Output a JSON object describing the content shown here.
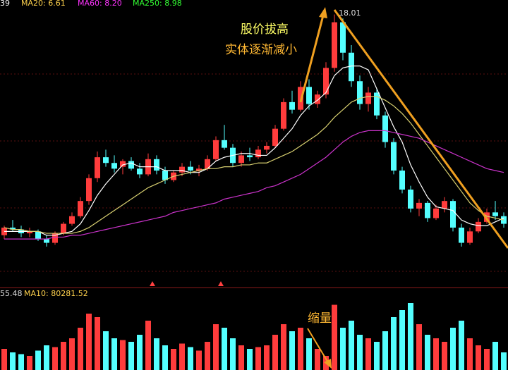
{
  "chart_data": [
    {
      "type": "candlestick",
      "legend": [
        {
          "text": "39",
          "color": "#ffffff"
        },
        {
          "text": "MA20: 6.61",
          "color": "#ffd24d"
        },
        {
          "text": "MA60: 8.20",
          "color": "#ff33ff"
        },
        {
          "text": "MA250: 8.98",
          "color": "#33ff33"
        }
      ],
      "annotations": [
        {
          "text": "股价拔高",
          "color": "#ffff66"
        },
        {
          "text": "实体逐渐减小",
          "color": "#ffb833"
        },
        {
          "text": "18.01",
          "color": "#dddddd"
        }
      ],
      "up_color": "#ff3c3c",
      "down_color": "#54ffff",
      "ylim": [
        4.5,
        18.4
      ],
      "open": [
        6.4,
        6.8,
        6.7,
        6.5,
        6.6,
        6.2,
        6.0,
        6.5,
        7.0,
        7.4,
        8.2,
        9.4,
        10.5,
        10.2,
        10.0,
        10.3,
        9.9,
        9.6,
        10.4,
        9.8,
        9.3,
        9.7,
        10.0,
        9.8,
        9.9,
        10.4,
        11.4,
        11.0,
        10.2,
        10.6,
        10.5,
        10.9,
        11.1,
        12.0,
        13.4,
        13.0,
        14.2,
        13.3,
        13.8,
        15.2,
        17.6,
        16.0,
        14.5,
        13.3,
        13.9,
        12.7,
        11.3,
        9.8,
        8.8,
        7.8,
        8.1,
        7.3,
        7.8,
        8.2,
        6.8,
        6.0,
        6.6,
        7.1,
        7.6,
        7.4
      ],
      "high": [
        6.9,
        7.2,
        6.9,
        6.8,
        6.7,
        6.4,
        6.6,
        7.1,
        7.6,
        8.4,
        9.6,
        10.8,
        10.9,
        10.6,
        10.4,
        10.5,
        10.2,
        10.7,
        10.6,
        10.0,
        9.8,
        10.2,
        10.3,
        10.1,
        10.6,
        11.6,
        12.2,
        11.2,
        10.8,
        11.0,
        11.1,
        11.3,
        12.2,
        13.6,
        14.0,
        14.5,
        14.6,
        14.0,
        15.5,
        18.01,
        17.8,
        16.4,
        14.8,
        14.2,
        14.1,
        12.9,
        11.5,
        10.0,
        9.0,
        8.3,
        8.2,
        8.0,
        8.4,
        8.3,
        7.0,
        6.8,
        7.3,
        7.8,
        8.2,
        7.6
      ],
      "low": [
        6.2,
        6.6,
        6.3,
        6.3,
        6.1,
        5.8,
        5.9,
        6.4,
        6.9,
        7.3,
        8.0,
        9.2,
        10.0,
        9.7,
        9.6,
        9.8,
        9.4,
        9.5,
        9.6,
        9.1,
        9.2,
        9.5,
        9.6,
        9.5,
        9.8,
        10.3,
        10.9,
        10.0,
        10.0,
        10.3,
        10.4,
        10.7,
        11.0,
        11.9,
        12.8,
        12.9,
        13.0,
        13.1,
        13.6,
        15.0,
        15.6,
        14.2,
        13.0,
        12.9,
        12.5,
        11.0,
        9.6,
        8.6,
        7.6,
        7.4,
        7.1,
        7.2,
        7.6,
        6.6,
        5.8,
        5.9,
        6.5,
        7.0,
        7.2,
        6.8
      ],
      "close": [
        6.8,
        6.7,
        6.5,
        6.6,
        6.2,
        6.0,
        6.5,
        7.0,
        7.4,
        8.2,
        9.4,
        10.5,
        10.2,
        9.9,
        10.3,
        9.9,
        9.6,
        10.4,
        9.8,
        9.3,
        9.7,
        10.0,
        9.8,
        9.9,
        10.4,
        11.4,
        11.0,
        10.2,
        10.6,
        10.5,
        10.9,
        11.1,
        12.0,
        13.4,
        13.0,
        14.2,
        13.3,
        13.8,
        15.2,
        17.6,
        16.0,
        14.5,
        13.3,
        13.9,
        12.7,
        11.3,
        9.8,
        8.8,
        7.8,
        8.1,
        7.3,
        7.8,
        8.2,
        6.8,
        6.0,
        6.6,
        7.1,
        7.6,
        7.4,
        7.0
      ],
      "lines": [
        {
          "color": "#ffffff",
          "values": [
            6.6,
            6.6,
            6.6,
            6.6,
            6.6,
            6.4,
            6.4,
            6.5,
            6.6,
            7.0,
            7.7,
            8.5,
            9.1,
            9.6,
            10.1,
            10.2,
            10.0,
            10.0,
            10.0,
            9.8,
            9.8,
            9.8,
            9.7,
            9.7,
            9.9,
            10.3,
            10.5,
            10.6,
            10.7,
            10.7,
            10.6,
            10.6,
            11.0,
            11.5,
            12.0,
            12.7,
            13.2,
            13.5,
            13.9,
            14.8,
            15.2,
            15.3,
            15.3,
            15.1,
            14.1,
            13.1,
            12.1,
            11.3,
            10.1,
            9.2,
            8.4,
            7.9,
            7.8,
            7.7,
            7.2,
            7.0,
            6.9,
            6.9,
            7.1,
            7.3
          ]
        },
        {
          "color": "#d8d070",
          "values": [
            6.8,
            6.7,
            6.7,
            6.6,
            6.6,
            6.5,
            6.5,
            6.5,
            6.5,
            6.6,
            6.8,
            7.1,
            7.4,
            7.7,
            8.0,
            8.3,
            8.6,
            8.9,
            9.1,
            9.3,
            9.5,
            9.6,
            9.7,
            9.8,
            9.9,
            9.9,
            10.0,
            10.0,
            10.1,
            10.1,
            10.2,
            10.2,
            10.4,
            10.6,
            10.8,
            11.1,
            11.4,
            11.7,
            12.1,
            12.6,
            13.0,
            13.4,
            13.6,
            13.7,
            13.7,
            13.5,
            13.2,
            12.8,
            12.3,
            11.7,
            11.1,
            10.5,
            9.9,
            9.3,
            8.7,
            8.1,
            7.7,
            7.4,
            7.3,
            7.2
          ]
        },
        {
          "color": "#cc33cc",
          "values": [
            6.2,
            6.2,
            6.2,
            6.2,
            6.2,
            6.2,
            6.3,
            6.3,
            6.4,
            6.4,
            6.5,
            6.6,
            6.7,
            6.8,
            6.9,
            7.0,
            7.1,
            7.2,
            7.3,
            7.4,
            7.6,
            7.7,
            7.8,
            7.9,
            8.0,
            8.1,
            8.3,
            8.4,
            8.5,
            8.6,
            8.7,
            8.9,
            9.0,
            9.2,
            9.4,
            9.6,
            9.9,
            10.2,
            10.5,
            10.9,
            11.3,
            11.6,
            11.8,
            11.9,
            11.9,
            11.9,
            11.8,
            11.7,
            11.6,
            11.5,
            11.3,
            11.1,
            10.9,
            10.7,
            10.5,
            10.3,
            10.1,
            9.9,
            9.8,
            9.7
          ]
        }
      ]
    },
    {
      "type": "bar",
      "legend": [
        {
          "text": "55.48",
          "color": "#dddddd"
        },
        {
          "text": "MA10: 80281.52",
          "color": "#ffd24d"
        }
      ],
      "annotations": [
        {
          "text": "缩量",
          "color": "#ffb833"
        }
      ],
      "ylim": [
        0,
        200000
      ],
      "values": [
        60000,
        50000,
        45000,
        40000,
        55000,
        70000,
        65000,
        80000,
        90000,
        120000,
        160000,
        150000,
        110000,
        90000,
        85000,
        80000,
        100000,
        140000,
        90000,
        70000,
        60000,
        75000,
        65000,
        55000,
        80000,
        130000,
        120000,
        90000,
        70000,
        60000,
        65000,
        70000,
        100000,
        130000,
        110000,
        120000,
        90000,
        60000,
        40000,
        185000,
        120000,
        140000,
        100000,
        90000,
        80000,
        110000,
        150000,
        170000,
        190000,
        130000,
        100000,
        90000,
        80000,
        120000,
        140000,
        90000,
        70000,
        60000,
        80000,
        50000
      ]
    }
  ]
}
